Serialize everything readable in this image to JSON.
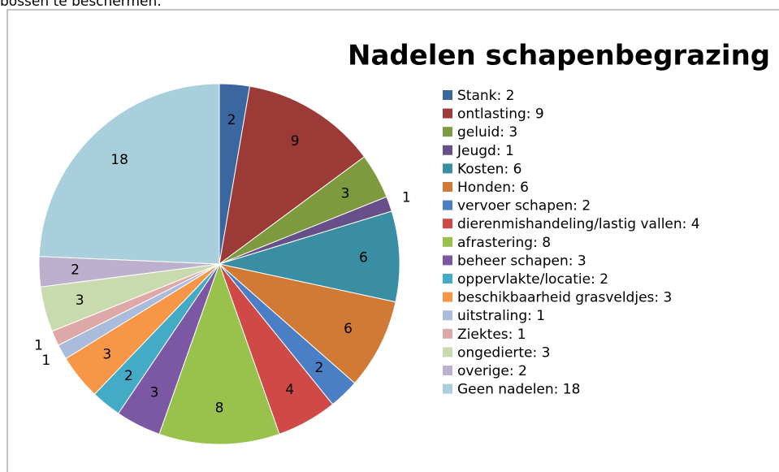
{
  "page_text": "bossen te beschermen.",
  "chart_data": {
    "type": "pie",
    "title": "Nadelen schapenbegrazing",
    "categories": [
      "Stank",
      "ontlasting",
      "geluid",
      "Jeugd",
      "Kosten",
      "Honden",
      "vervoer schapen",
      "dierenmishandeling/lastig vallen",
      "afrastering",
      "beheer schapen",
      "oppervlakte/locatie",
      "beschikbaarheid grasveldjes",
      "uitstraling",
      "Ziektes",
      "ongedierte",
      "overige",
      "Geen nadelen"
    ],
    "legend_labels": [
      "Stank: 2",
      "ontlasting: 9",
      "geluid: 3",
      "Jeugd: 1",
      "Kosten: 6",
      "Honden: 6",
      "vervoer schapen: 2",
      "dierenmishandeling/lastig vallen: 4",
      "afrastering: 8",
      "beheer schapen: 3",
      "oppervlakte/locatie: 2",
      "beschikbaarheid grasveldjes: 3",
      "uitstraling: 1",
      "Ziektes: 1",
      "ongedierte: 3",
      "overige: 2",
      "Geen nadelen: 18"
    ],
    "values": [
      2,
      9,
      3,
      1,
      6,
      6,
      2,
      4,
      8,
      3,
      2,
      3,
      1,
      1,
      3,
      2,
      18
    ],
    "colors": [
      "#3a67a0",
      "#9c3a38",
      "#7d9b3e",
      "#674f89",
      "#3a8ea3",
      "#d07a35",
      "#4a7ec5",
      "#cf4a47",
      "#99c24c",
      "#7c57a3",
      "#44abc7",
      "#f79646",
      "#a9bcdb",
      "#dda8a7",
      "#c9dbae",
      "#bdb0ce",
      "#a9cfdc"
    ]
  }
}
